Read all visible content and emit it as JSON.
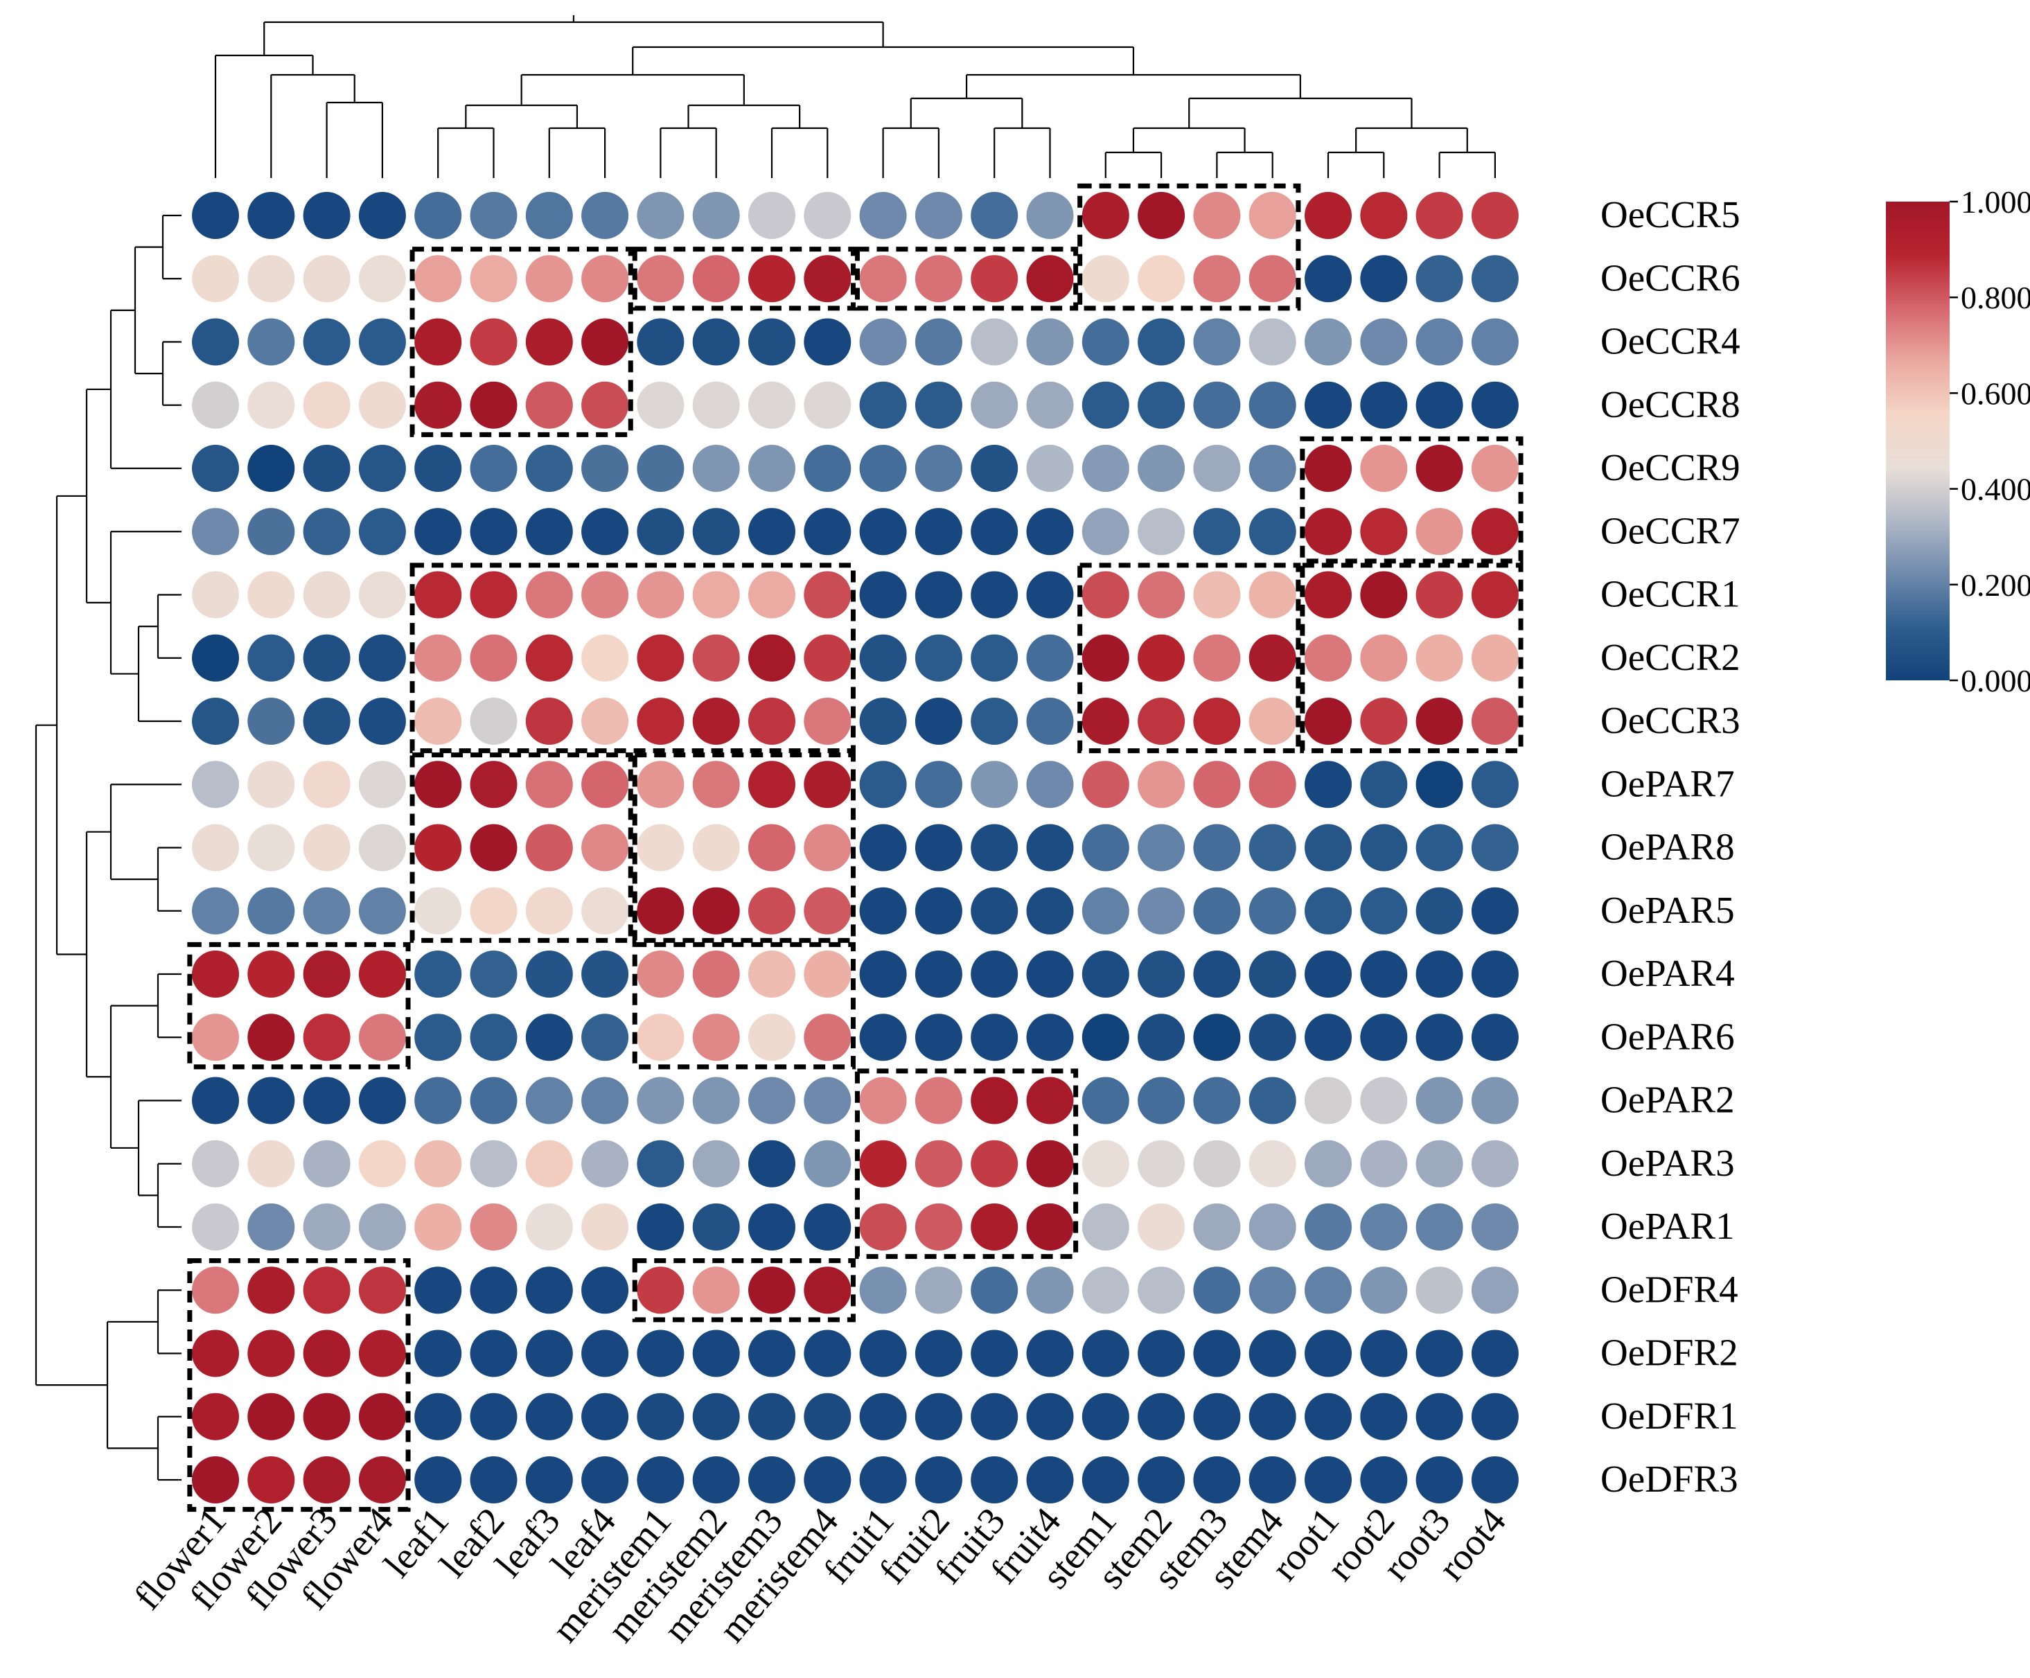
{
  "chart_data": {
    "type": "heatmap",
    "title": "",
    "columns": [
      "flower1",
      "flower2",
      "flower3",
      "flower4",
      "leaf1",
      "leaf2",
      "leaf3",
      "leaf4",
      "meristem1",
      "meristem2",
      "meristem3",
      "meristem4",
      "fruit1",
      "fruit2",
      "fruit3",
      "fruit4",
      "stem1",
      "stem2",
      "stem3",
      "stem4",
      "root1",
      "root2",
      "root3",
      "root4"
    ],
    "rows": [
      "OeCCR5",
      "OeCCR6",
      "OeCCR4",
      "OeCCR8",
      "OeCCR9",
      "OeCCR7",
      "OeCCR1",
      "OeCCR2",
      "OeCCR3",
      "OePAR7",
      "OePAR8",
      "OePAR5",
      "OePAR4",
      "OePAR6",
      "OePAR2",
      "OePAR3",
      "OePAR1",
      "OeDFR4",
      "OeDFR2",
      "OeDFR1",
      "OeDFR3"
    ],
    "values": [
      [
        0.02,
        0.02,
        0.02,
        0.02,
        0.15,
        0.18,
        0.17,
        0.18,
        0.25,
        0.25,
        0.38,
        0.38,
        0.22,
        0.22,
        0.15,
        0.25,
        0.95,
        1.0,
        0.72,
        0.68,
        0.93,
        0.88,
        0.85,
        0.85
      ],
      [
        0.5,
        0.48,
        0.48,
        0.46,
        0.68,
        0.66,
        0.7,
        0.72,
        0.75,
        0.78,
        0.9,
        0.97,
        0.75,
        0.76,
        0.85,
        0.98,
        0.5,
        0.55,
        0.75,
        0.76,
        0.02,
        0.02,
        0.12,
        0.12
      ],
      [
        0.08,
        0.18,
        0.1,
        0.1,
        0.95,
        0.85,
        0.95,
        1.0,
        0.05,
        0.05,
        0.05,
        0.02,
        0.22,
        0.18,
        0.35,
        0.25,
        0.15,
        0.1,
        0.2,
        0.35,
        0.25,
        0.22,
        0.2,
        0.2
      ],
      [
        0.4,
        0.46,
        0.52,
        0.5,
        0.97,
        1.0,
        0.8,
        0.82,
        0.42,
        0.42,
        0.42,
        0.42,
        0.1,
        0.1,
        0.3,
        0.3,
        0.1,
        0.1,
        0.15,
        0.15,
        0.02,
        0.02,
        0.02,
        0.02
      ],
      [
        0.08,
        0.0,
        0.05,
        0.08,
        0.05,
        0.15,
        0.12,
        0.16,
        0.16,
        0.25,
        0.25,
        0.15,
        0.15,
        0.18,
        0.06,
        0.33,
        0.26,
        0.25,
        0.3,
        0.2,
        1.0,
        0.7,
        1.0,
        0.7
      ],
      [
        0.22,
        0.16,
        0.12,
        0.1,
        0.02,
        0.02,
        0.02,
        0.02,
        0.05,
        0.05,
        0.02,
        0.02,
        0.02,
        0.02,
        0.02,
        0.02,
        0.28,
        0.35,
        0.1,
        0.1,
        0.95,
        0.88,
        0.7,
        0.92
      ],
      [
        0.48,
        0.5,
        0.48,
        0.46,
        0.88,
        0.88,
        0.75,
        0.73,
        0.7,
        0.66,
        0.66,
        0.82,
        0.02,
        0.02,
        0.02,
        0.02,
        0.82,
        0.76,
        0.62,
        0.64,
        0.95,
        1.0,
        0.85,
        0.88
      ],
      [
        0.0,
        0.1,
        0.05,
        0.04,
        0.72,
        0.76,
        0.88,
        0.55,
        0.88,
        0.82,
        0.98,
        0.85,
        0.06,
        0.1,
        0.1,
        0.15,
        1.0,
        0.9,
        0.75,
        0.97,
        0.75,
        0.7,
        0.65,
        0.65
      ],
      [
        0.08,
        0.16,
        0.06,
        0.04,
        0.62,
        0.4,
        0.86,
        0.62,
        0.88,
        0.94,
        0.86,
        0.75,
        0.06,
        0.02,
        0.1,
        0.15,
        0.97,
        0.86,
        0.88,
        0.64,
        1.0,
        0.85,
        1.0,
        0.8
      ],
      [
        0.35,
        0.48,
        0.52,
        0.42,
        1.0,
        0.96,
        0.76,
        0.78,
        0.7,
        0.75,
        0.92,
        0.95,
        0.1,
        0.15,
        0.25,
        0.22,
        0.8,
        0.7,
        0.78,
        0.78,
        0.02,
        0.08,
        0.0,
        0.1
      ],
      [
        0.48,
        0.45,
        0.5,
        0.42,
        0.9,
        1.0,
        0.8,
        0.72,
        0.5,
        0.5,
        0.78,
        0.72,
        0.02,
        0.02,
        0.04,
        0.04,
        0.15,
        0.2,
        0.15,
        0.12,
        0.08,
        0.08,
        0.1,
        0.12
      ],
      [
        0.2,
        0.18,
        0.2,
        0.2,
        0.45,
        0.54,
        0.52,
        0.47,
        1.0,
        1.0,
        0.82,
        0.8,
        0.02,
        0.02,
        0.04,
        0.04,
        0.2,
        0.22,
        0.15,
        0.15,
        0.1,
        0.1,
        0.06,
        0.02
      ],
      [
        0.93,
        0.9,
        0.96,
        0.93,
        0.1,
        0.12,
        0.07,
        0.07,
        0.72,
        0.76,
        0.62,
        0.65,
        0.02,
        0.02,
        0.02,
        0.02,
        0.04,
        0.06,
        0.04,
        0.05,
        0.02,
        0.02,
        0.02,
        0.02
      ],
      [
        0.7,
        1.0,
        0.87,
        0.75,
        0.1,
        0.1,
        0.02,
        0.12,
        0.58,
        0.72,
        0.5,
        0.76,
        0.02,
        0.02,
        0.02,
        0.02,
        0.0,
        0.04,
        0.0,
        0.04,
        0.02,
        0.02,
        0.02,
        0.02
      ],
      [
        0.02,
        0.02,
        0.02,
        0.02,
        0.15,
        0.15,
        0.2,
        0.2,
        0.25,
        0.25,
        0.22,
        0.22,
        0.72,
        0.75,
        0.98,
        0.97,
        0.15,
        0.15,
        0.15,
        0.12,
        0.4,
        0.38,
        0.25,
        0.25
      ],
      [
        0.38,
        0.5,
        0.32,
        0.55,
        0.62,
        0.35,
        0.58,
        0.32,
        0.1,
        0.3,
        0.02,
        0.25,
        0.9,
        0.8,
        0.85,
        1.0,
        0.45,
        0.42,
        0.4,
        0.45,
        0.3,
        0.32,
        0.3,
        0.32
      ],
      [
        0.38,
        0.22,
        0.3,
        0.3,
        0.65,
        0.72,
        0.45,
        0.5,
        0.02,
        0.06,
        0.02,
        0.02,
        0.82,
        0.8,
        0.95,
        1.0,
        0.35,
        0.48,
        0.3,
        0.28,
        0.18,
        0.2,
        0.2,
        0.22
      ],
      [
        0.75,
        0.95,
        0.87,
        0.86,
        0.02,
        0.02,
        0.02,
        0.02,
        0.85,
        0.7,
        1.0,
        0.98,
        0.24,
        0.3,
        0.15,
        0.25,
        0.35,
        0.35,
        0.15,
        0.2,
        0.2,
        0.25,
        0.36,
        0.28
      ],
      [
        0.95,
        0.95,
        0.97,
        0.94,
        0.02,
        0.02,
        0.02,
        0.02,
        0.02,
        0.02,
        0.02,
        0.02,
        0.02,
        0.02,
        0.02,
        0.02,
        0.02,
        0.02,
        0.02,
        0.02,
        0.02,
        0.02,
        0.02,
        0.02
      ],
      [
        0.95,
        1.0,
        1.0,
        1.0,
        0.02,
        0.02,
        0.02,
        0.02,
        0.03,
        0.03,
        0.03,
        0.03,
        0.02,
        0.02,
        0.02,
        0.02,
        0.02,
        0.02,
        0.02,
        0.02,
        0.02,
        0.02,
        0.02,
        0.02
      ],
      [
        1.0,
        0.92,
        0.97,
        0.97,
        0.02,
        0.02,
        0.02,
        0.02,
        0.02,
        0.02,
        0.02,
        0.02,
        0.02,
        0.02,
        0.02,
        0.02,
        0.02,
        0.02,
        0.02,
        0.02,
        0.02,
        0.02,
        0.02,
        0.02
      ]
    ],
    "highlight_boxes": [
      {
        "rows": [
          0,
          1
        ],
        "cols": [
          16,
          19
        ]
      },
      {
        "rows": [
          1,
          3
        ],
        "cols": [
          4,
          7
        ]
      },
      {
        "rows": [
          1,
          1
        ],
        "cols": [
          8,
          11
        ]
      },
      {
        "rows": [
          1,
          1
        ],
        "cols": [
          12,
          15
        ]
      },
      {
        "rows": [
          4,
          5
        ],
        "cols": [
          20,
          23
        ]
      },
      {
        "rows": [
          6,
          8
        ],
        "cols": [
          4,
          11
        ]
      },
      {
        "rows": [
          6,
          8
        ],
        "cols": [
          16,
          19
        ]
      },
      {
        "rows": [
          6,
          8
        ],
        "cols": [
          20,
          23
        ]
      },
      {
        "rows": [
          9,
          11
        ],
        "cols": [
          4,
          7
        ]
      },
      {
        "rows": [
          9,
          11
        ],
        "cols": [
          8,
          11
        ]
      },
      {
        "rows": [
          12,
          13
        ],
        "cols": [
          0,
          3
        ]
      },
      {
        "rows": [
          12,
          13
        ],
        "cols": [
          8,
          11
        ]
      },
      {
        "rows": [
          14,
          16
        ],
        "cols": [
          12,
          15
        ]
      },
      {
        "rows": [
          17,
          20
        ],
        "cols": [
          0,
          3
        ]
      },
      {
        "rows": [
          17,
          17
        ],
        "cols": [
          8,
          11
        ]
      }
    ],
    "colorbar": {
      "range": [
        0.0,
        1.0
      ],
      "ticks": [
        "0.000",
        "0.200",
        "0.400",
        "0.600",
        "0.800",
        "1.000"
      ],
      "colors": [
        "#12427a",
        "#2e5e8e",
        "#6f8aac",
        "#b0b8c6",
        "#e8ded8",
        "#f4d6c6",
        "#eaa8a0",
        "#d5666d",
        "#b7242f",
        "#a11728"
      ]
    },
    "xlabel": "",
    "ylabel": ""
  }
}
